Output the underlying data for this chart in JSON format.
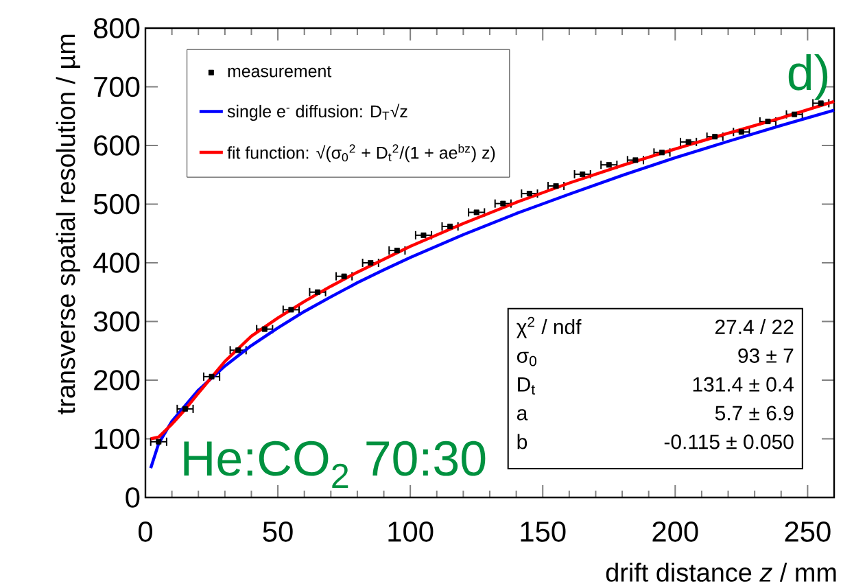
{
  "chart_data": {
    "type": "line",
    "xlabel": "drift distance *z* / mm",
    "ylabel": "transverse spatial resolution / µm",
    "xlim": [
      0,
      260
    ],
    "xticks": [
      0,
      50,
      100,
      150,
      200,
      250
    ],
    "ylim": [
      0,
      800
    ],
    "yticks": [
      0,
      100,
      200,
      300,
      400,
      500,
      600,
      700,
      800
    ],
    "legend": "top left",
    "grid": false,
    "series": [
      {
        "name": "measurement",
        "type": "scatter",
        "marker": "square",
        "color": "#000000",
        "x": [
          5,
          15,
          25,
          35,
          45,
          55,
          65,
          75,
          85,
          95,
          105,
          115,
          125,
          135,
          145,
          155,
          165,
          175,
          185,
          195,
          205,
          215,
          225,
          235,
          245,
          255
        ],
        "values": [
          95,
          151,
          206,
          251,
          287,
          320,
          350,
          377,
          400,
          421,
          447,
          462,
          486,
          501,
          518,
          531,
          551,
          567,
          575,
          588,
          606,
          615,
          623,
          641,
          653,
          672
        ],
        "xerrors": [
          3,
          3,
          3,
          3,
          3,
          3,
          3,
          3,
          3,
          3,
          3,
          3,
          3,
          3,
          3,
          3,
          3,
          3,
          3,
          3,
          3,
          3,
          3,
          3,
          3,
          3
        ]
      },
      {
        "name": "single e$^{-}$ diffusion: D$_{T}$√z",
        "color": "#0000ff",
        "x": [
          2,
          5,
          10,
          20,
          30,
          40,
          50,
          60,
          70,
          80,
          90,
          100,
          120,
          140,
          160,
          180,
          200,
          220,
          240,
          260
        ],
        "values": [
          50,
          92,
          130,
          183,
          224,
          259,
          289,
          317,
          342,
          366,
          388,
          409,
          448,
          484,
          517,
          549,
          579,
          607,
          634,
          660
        ]
      },
      {
        "name": "fit function: √(σ$_{0}$$^{2}$ + D$_{t}$$^{2}$/(1 + ae$^{bz}$) z)",
        "color": "#ff0000",
        "x": [
          2,
          5,
          10,
          15,
          20,
          25,
          30,
          40,
          50,
          60,
          70,
          80,
          100,
          120,
          140,
          160,
          180,
          200,
          220,
          240,
          260
        ],
        "values": [
          100,
          103,
          125,
          150,
          178,
          205,
          232,
          275,
          306,
          334,
          360,
          384,
          428,
          467,
          503,
          536,
          566,
          594,
          621,
          647,
          675
        ]
      }
    ],
    "annotations": [
      "d)",
      "He:CO$_{2}$ 70:30",
      "χ$^{2}$ / ndf",
      "27.4 / 22",
      "σ$_{0}$",
      "93 ± 7",
      "D$_{t}$",
      "131.4 ± 0.4",
      "a",
      "5.7 ± 6.9",
      "b",
      "-0.115 ± 0.050"
    ]
  }
}
